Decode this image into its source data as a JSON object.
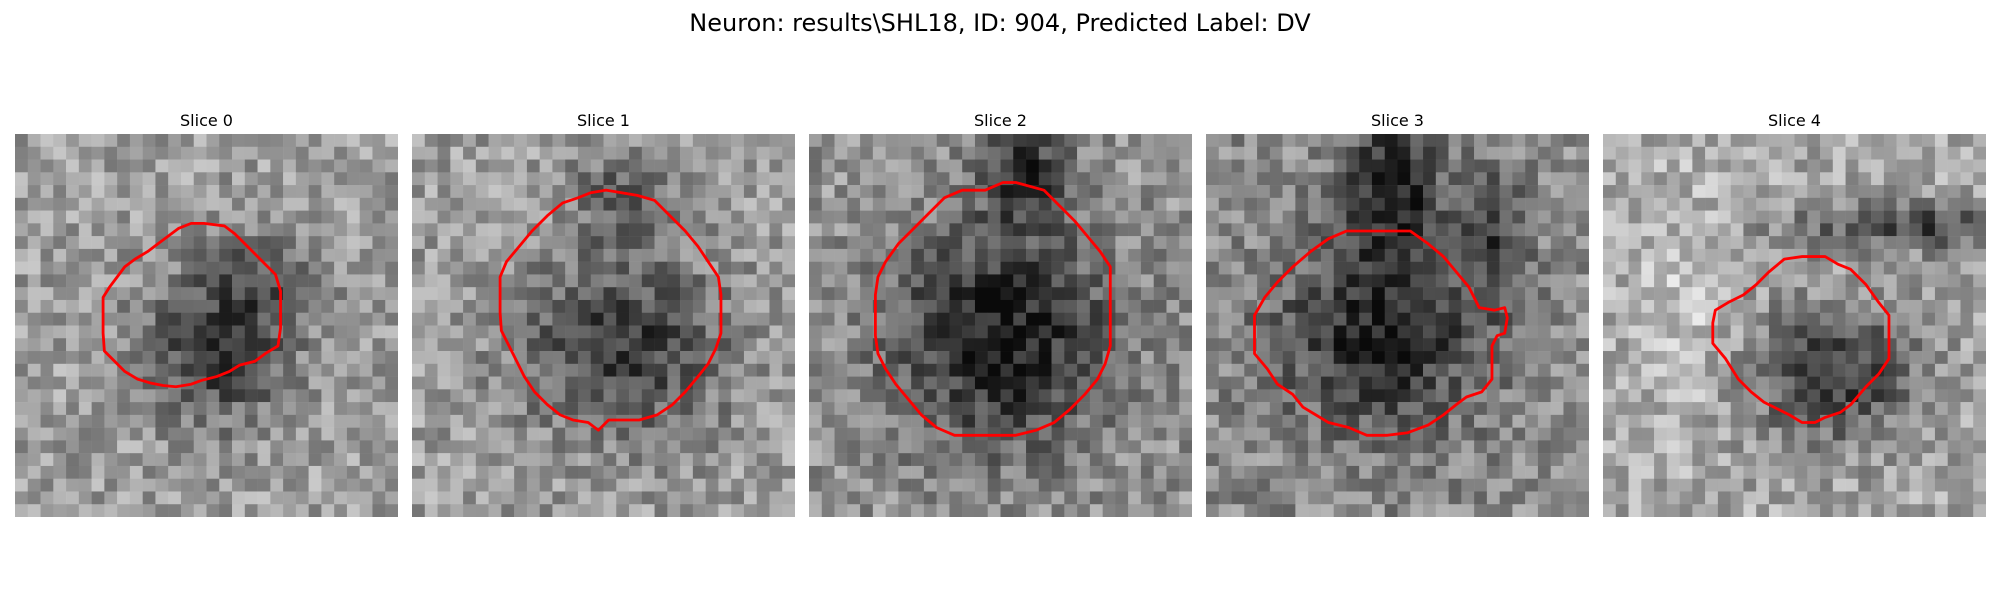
{
  "figure": {
    "title": "Neuron: results\\SHL18, ID: 904, Predicted Label: DV"
  },
  "colors": {
    "contour": "#ff0000",
    "colormap": "gray"
  },
  "slices": [
    {
      "label": "Slice 0"
    },
    {
      "label": "Slice 1"
    },
    {
      "label": "Slice 2"
    },
    {
      "label": "Slice 3"
    },
    {
      "label": "Slice 4"
    }
  ]
}
